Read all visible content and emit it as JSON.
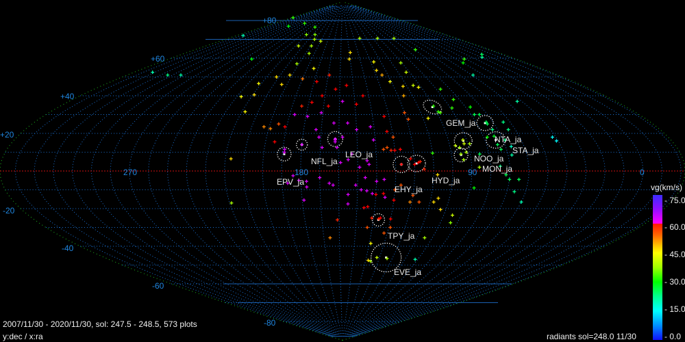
{
  "chart_data": {
    "type": "scatter",
    "projection": "sinusoidal",
    "xlabel": "x:ra",
    "ylabel": "y:dec",
    "center_ra": 158,
    "dec_tick_labels": [
      "+80",
      "+60",
      "+40",
      "+20",
      "-20",
      "-40",
      "-60",
      "-80"
    ],
    "ra_tick_labels": [
      "270",
      "180",
      "90",
      "0"
    ],
    "grid": true,
    "colorbar": {
      "label": "vg(km/s)",
      "ticks": [
        "75.0",
        "60.0",
        "45.0",
        "30.0",
        "15.0",
        "0.0"
      ],
      "range": [
        0,
        75
      ]
    },
    "showers": [
      {
        "name": "GEM_ja",
        "ra": 101,
        "dec": 34
      },
      {
        "name": "STA_ja",
        "ra": 75,
        "dec": 25.5
      },
      {
        "name": "NTA_ja",
        "ra": 74,
        "dec": 16.5
      },
      {
        "name": "NOO_ja",
        "ra": 92,
        "dec": 16
      },
      {
        "name": "MON_ja",
        "ra": 95,
        "dec": 8.5
      },
      {
        "name": "HYD_ja",
        "ra": 119,
        "dec": 4
      },
      {
        "name": "EHY_ja",
        "ra": 127,
        "dec": 3.5
      },
      {
        "name": "TPY_ja",
        "ra": 137,
        "dec": -26
      },
      {
        "name": "EVE_ja",
        "ra": 125,
        "dec": -46
      },
      {
        "name": "LEO_ja",
        "ra": 162,
        "dec": 17
      },
      {
        "name": "NFL_ja",
        "ra": 180,
        "dec": 14
      },
      {
        "name": "EPV_ja",
        "ra": 189,
        "dec": 9
      }
    ],
    "points_fields": [
      "ra",
      "dec",
      "vg"
    ],
    "points": [
      [
        334,
        81.5,
        33
      ],
      [
        258,
        78.5,
        33
      ],
      [
        284,
        77,
        30
      ],
      [
        220,
        76.5,
        33
      ],
      [
        221,
        72.5,
        38
      ],
      [
        206,
        72.5,
        38
      ],
      [
        327,
        72,
        20
      ],
      [
        201,
        70,
        40
      ],
      [
        199,
        66.5,
        40
      ],
      [
        190,
        69,
        42
      ],
      [
        216,
        66.5,
        42
      ],
      [
        196,
        62.5,
        40
      ],
      [
        252,
        59.5,
        30
      ],
      [
        202,
        57,
        40
      ],
      [
        202,
        51,
        47
      ],
      [
        212,
        50,
        47
      ],
      [
        184,
        54.5,
        45
      ],
      [
        190,
        49,
        53
      ],
      [
        204,
        46,
        47
      ],
      [
        222,
        46.5,
        45
      ],
      [
        219,
        40.5,
        47
      ],
      [
        227,
        39.5,
        45
      ],
      [
        304,
        51,
        22
      ],
      [
        293,
        51,
        20
      ],
      [
        322,
        52.5,
        20
      ],
      [
        218,
        31.5,
        45
      ],
      [
        203,
        23.5,
        52
      ],
      [
        199,
        22.5,
        52
      ],
      [
        195,
        25,
        55
      ],
      [
        191,
        23.5,
        60
      ],
      [
        195,
        15.5,
        60
      ],
      [
        217,
        6.5,
        47
      ],
      [
        189,
        11.5,
        62
      ],
      [
        180,
        14,
        62
      ],
      [
        162,
        16.5,
        62
      ],
      [
        184,
        -2.5,
        62
      ],
      [
        181,
        -5,
        62
      ],
      [
        170,
        -3.5,
        62
      ],
      [
        165,
        -6.5,
        62
      ],
      [
        131,
        70.5,
        40
      ],
      [
        103,
        70.5,
        40
      ],
      [
        77,
        70.5,
        40
      ],
      [
        69,
        64.5,
        33
      ],
      [
        149,
        63,
        47
      ],
      [
        127,
        58,
        45
      ],
      [
        101,
        57.5,
        40
      ],
      [
        103,
        52.5,
        42
      ],
      [
        128,
        53.5,
        47
      ],
      [
        125,
        51,
        50
      ],
      [
        151,
        59.5,
        47
      ],
      [
        121,
        47.5,
        45
      ],
      [
        105,
        45.5,
        42
      ],
      [
        113,
        45,
        47
      ],
      [
        102,
        44.5,
        45
      ],
      [
        87,
        43.5,
        33
      ],
      [
        49,
        51,
        20
      ],
      [
        2,
        62,
        25
      ],
      [
        32,
        59.5,
        33
      ],
      [
        40,
        57.5,
        30
      ],
      [
        9,
        60.5,
        22
      ],
      [
        43,
        37,
        20
      ],
      [
        84,
        38,
        33
      ],
      [
        116,
        40,
        50
      ],
      [
        100,
        34.5,
        33
      ],
      [
        99,
        31.5,
        33
      ],
      [
        98,
        31,
        35
      ],
      [
        89,
        33.5,
        33
      ],
      [
        77,
        34,
        30
      ],
      [
        120,
        31,
        55
      ],
      [
        119,
        27.5,
        55
      ],
      [
        107,
        28,
        45
      ],
      [
        78,
        30,
        25
      ],
      [
        75,
        30,
        25
      ],
      [
        74,
        26,
        25
      ],
      [
        74,
        25,
        25
      ],
      [
        64,
        26,
        22
      ],
      [
        64,
        22,
        22
      ],
      [
        73,
        22,
        22
      ],
      [
        74,
        18.5,
        28
      ],
      [
        78,
        18,
        30
      ],
      [
        69,
        16.5,
        22
      ],
      [
        74,
        14,
        25
      ],
      [
        67,
        13,
        18
      ],
      [
        42,
        18,
        15
      ],
      [
        41,
        16,
        15
      ],
      [
        92,
        16.5,
        42
      ],
      [
        92,
        14.5,
        42
      ],
      [
        89,
        14.5,
        40
      ],
      [
        95,
        12.5,
        40
      ],
      [
        97,
        13.5,
        42
      ],
      [
        95,
        9,
        40
      ],
      [
        92,
        10,
        40
      ],
      [
        94,
        6,
        40
      ],
      [
        110,
        9.5,
        33
      ],
      [
        85,
        9,
        25
      ],
      [
        73,
        11.5,
        25
      ],
      [
        68,
        8.5,
        20
      ],
      [
        75,
        2.5,
        22
      ],
      [
        72,
        -2,
        25
      ],
      [
        70,
        -4.5,
        25
      ],
      [
        66,
        -11,
        22
      ],
      [
        60,
        -16.5,
        20
      ],
      [
        118,
        4.5,
        60
      ],
      [
        120,
        3.5,
        60
      ],
      [
        117,
        5,
        58
      ],
      [
        127,
        3.5,
        60
      ],
      [
        127,
        11.5,
        60
      ],
      [
        136,
        11.5,
        55
      ],
      [
        132,
        11,
        58
      ],
      [
        122,
        6.5,
        60
      ],
      [
        115,
        1,
        58
      ],
      [
        86,
        2,
        40
      ],
      [
        108,
        -2,
        47
      ],
      [
        187,
        30,
        62
      ],
      [
        179,
        29,
        62
      ],
      [
        171,
        31,
        62
      ],
      [
        167,
        34.5,
        60
      ],
      [
        158,
        37,
        62
      ],
      [
        149,
        35.5,
        60
      ],
      [
        163,
        25.5,
        62
      ],
      [
        155,
        25.5,
        62
      ],
      [
        158,
        18,
        62
      ],
      [
        150,
        22,
        62
      ],
      [
        142,
        23.5,
        62
      ],
      [
        173,
        22,
        62
      ],
      [
        171,
        18,
        62
      ],
      [
        169,
        12.5,
        62
      ],
      [
        161,
        12.5,
        62
      ],
      [
        153,
        9,
        62
      ],
      [
        145,
        5.5,
        62
      ],
      [
        149,
        2,
        62
      ],
      [
        144,
        3.5,
        62
      ],
      [
        159,
        4.5,
        62
      ],
      [
        155,
        6,
        62
      ],
      [
        133,
        29,
        60
      ],
      [
        133,
        21,
        60
      ],
      [
        130,
        18,
        55
      ],
      [
        141,
        16.5,
        62
      ],
      [
        134,
        12.5,
        55
      ],
      [
        130,
        11,
        60
      ],
      [
        162,
        17,
        62
      ],
      [
        162,
        15.5,
        62
      ],
      [
        189,
        10,
        62
      ],
      [
        187,
        -6.5,
        62
      ],
      [
        177,
        -5.5,
        62
      ],
      [
        177,
        -8.5,
        62
      ],
      [
        163,
        -7.5,
        62
      ],
      [
        155,
        -12.5,
        62
      ],
      [
        151,
        -7.5,
        62
      ],
      [
        148,
        -10,
        62
      ],
      [
        146,
        -3.5,
        62
      ],
      [
        145,
        -10.5,
        62
      ],
      [
        142,
        -12,
        62
      ],
      [
        140,
        -5.5,
        62
      ],
      [
        136,
        -4.5,
        62
      ],
      [
        135,
        -14,
        62
      ],
      [
        155,
        -17.5,
        62
      ],
      [
        179,
        -15.5,
        62
      ],
      [
        219,
        -17,
        40
      ],
      [
        146,
        -19.5,
        60
      ],
      [
        144,
        -19,
        60
      ],
      [
        140,
        -12.5,
        60
      ],
      [
        136,
        -12,
        60
      ],
      [
        130,
        -10,
        55
      ],
      [
        130,
        -15.5,
        60
      ],
      [
        127,
        -7.5,
        55
      ],
      [
        120,
        -13,
        55
      ],
      [
        121,
        -16.5,
        52
      ],
      [
        116,
        -16.5,
        55
      ],
      [
        108,
        -16.5,
        47
      ],
      [
        106,
        -14.5,
        47
      ],
      [
        103,
        -20.5,
        47
      ],
      [
        95,
        -23.5,
        42
      ],
      [
        94,
        -27.5,
        38
      ],
      [
        88,
        -9,
        30
      ],
      [
        65,
        -4.5,
        25
      ],
      [
        130,
        -25.5,
        60
      ],
      [
        141,
        -25,
        58
      ],
      [
        137,
        -25.5,
        58
      ],
      [
        136,
        -25,
        60
      ],
      [
        161,
        -26,
        58
      ],
      [
        129,
        -30,
        55
      ],
      [
        143,
        -30,
        55
      ],
      [
        132,
        -33,
        55
      ],
      [
        166,
        -35.5,
        52
      ],
      [
        105,
        -35.5,
        40
      ],
      [
        139,
        -38.5,
        45
      ],
      [
        138,
        -47.5,
        47
      ],
      [
        132,
        -46,
        42
      ],
      [
        124,
        -46.5,
        40
      ],
      [
        136,
        -48,
        40
      ],
      [
        102,
        -47,
        20
      ],
      [
        178,
        36.5,
        60
      ],
      [
        172,
        40,
        60
      ],
      [
        163,
        43.5,
        60
      ],
      [
        155,
        45.5,
        60
      ],
      [
        184,
        34.5,
        58
      ],
      [
        144,
        40,
        60
      ],
      [
        178,
        47.5,
        60
      ],
      [
        169,
        51,
        58
      ]
    ]
  },
  "footer": {
    "range_text": "2007/11/30 - 2020/11/30,  sol: 247.5 - 248.5, 573 plots",
    "axes_text": "y:dec / x:ra",
    "radiants_text": "radiants sol=248.0 11/30"
  },
  "colors": {
    "grid": "#1a6fd0",
    "boundary": "#1a9a1a",
    "equator": "#d01010",
    "axis_label": "#1f86e0"
  }
}
